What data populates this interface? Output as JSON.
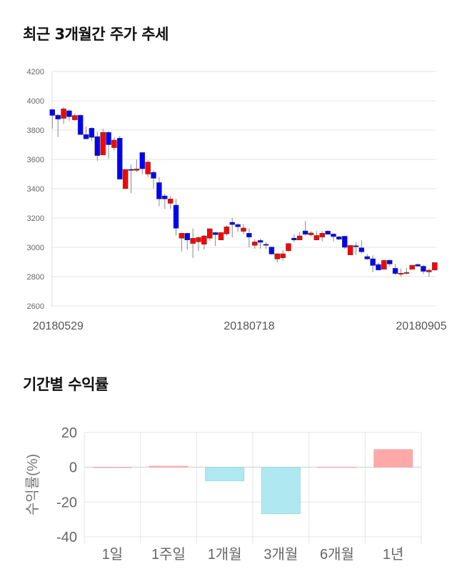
{
  "section1": {
    "title": "최근 3개월간 주가 추세"
  },
  "section2": {
    "title": "기간별 수익률"
  },
  "colors": {
    "up": "#ff0000",
    "down": "#0000ff",
    "pos_bar": "#ffa8a8",
    "neg_bar": "#b0e8f2"
  },
  "chart_data": [
    {
      "type": "candlestick",
      "title": "최근 3개월간 주가 추세",
      "ylim": [
        2600,
        4200
      ],
      "yticks": [
        2600,
        2800,
        3000,
        3200,
        3400,
        3600,
        3800,
        4000,
        4200
      ],
      "xtick_labels": [
        {
          "index": 0,
          "label": "20180529"
        },
        {
          "index": 34,
          "label": "20180718"
        },
        {
          "index": 66,
          "label": "20180905"
        }
      ],
      "grid": true,
      "ohlc": [
        [
          3940,
          3945,
          3810,
          3900
        ],
        [
          3902,
          3910,
          3753,
          3875
        ],
        [
          3880,
          3956,
          3842,
          3945
        ],
        [
          3932,
          3940,
          3862,
          3891
        ],
        [
          3870,
          3915,
          3862,
          3900
        ],
        [
          3902,
          3902,
          3769,
          3769
        ],
        [
          3770,
          3826,
          3740,
          3740
        ],
        [
          3813,
          3820,
          3725,
          3750
        ],
        [
          3756,
          3790,
          3590,
          3626
        ],
        [
          3630,
          3810,
          3630,
          3785
        ],
        [
          3785,
          3790,
          3606,
          3700
        ],
        [
          3680,
          3752,
          3660,
          3732
        ],
        [
          3745,
          3760,
          3465,
          3465
        ],
        [
          3400,
          3532,
          3400,
          3532
        ],
        [
          3532,
          3566,
          3370,
          3527
        ],
        [
          3525,
          3600,
          3512,
          3535
        ],
        [
          3647,
          3650,
          3500,
          3536
        ],
        [
          3500,
          3595,
          3480,
          3582
        ],
        [
          3512,
          3525,
          3400,
          3471
        ],
        [
          3442,
          3480,
          3281,
          3330
        ],
        [
          3351,
          3365,
          3262,
          3330
        ],
        [
          3300,
          3350,
          3262,
          3330
        ],
        [
          3288,
          3330,
          3081,
          3130
        ],
        [
          3062,
          3100,
          2972,
          3096
        ],
        [
          3096,
          3100,
          2985,
          3050
        ],
        [
          3026,
          3128,
          2927,
          3062
        ],
        [
          3037,
          3075,
          2975,
          3067
        ],
        [
          3021,
          3085,
          2985,
          3078
        ],
        [
          3062,
          3127,
          3045,
          3127
        ],
        [
          3101,
          3105,
          3010,
          3086
        ],
        [
          3050,
          3101,
          3050,
          3101
        ],
        [
          3091,
          3150,
          3080,
          3140
        ],
        [
          3171,
          3200,
          3067,
          3155
        ],
        [
          3156,
          3165,
          3105,
          3140
        ],
        [
          3109,
          3160,
          3090,
          3132
        ],
        [
          3096,
          3130,
          3000,
          3070
        ],
        [
          3013,
          3055,
          2990,
          3037
        ],
        [
          3047,
          3060,
          2990,
          3034
        ],
        [
          3021,
          3035,
          2990,
          3016
        ],
        [
          3002,
          3005,
          2950,
          2954
        ],
        [
          2920,
          2960,
          2895,
          2956
        ],
        [
          2928,
          2980,
          2910,
          2956
        ],
        [
          2976,
          3030,
          2970,
          3026
        ],
        [
          3063,
          3090,
          3035,
          3050
        ],
        [
          3050,
          3105,
          3050,
          3078
        ],
        [
          3112,
          3180,
          3080,
          3089
        ],
        [
          3085,
          3110,
          3075,
          3098
        ],
        [
          3050,
          3110,
          3050,
          3081
        ],
        [
          3070,
          3110,
          3040,
          3096
        ],
        [
          3111,
          3115,
          3085,
          3089
        ],
        [
          3091,
          3095,
          3040,
          3073
        ],
        [
          3072,
          3078,
          3050,
          3055
        ],
        [
          3076,
          3078,
          2990,
          3000
        ],
        [
          2948,
          3013,
          2948,
          3013
        ],
        [
          3011,
          3035,
          2950,
          3006
        ],
        [
          2997,
          3050,
          2960,
          2969
        ],
        [
          2937,
          2955,
          2915,
          2920
        ],
        [
          2922,
          2945,
          2830,
          2876
        ],
        [
          2883,
          2895,
          2855,
          2845
        ],
        [
          2850,
          2915,
          2850,
          2911
        ],
        [
          2912,
          2915,
          2870,
          2886
        ],
        [
          2857,
          2885,
          2810,
          2821
        ],
        [
          2816,
          2855,
          2800,
          2823
        ],
        [
          2823,
          2860,
          2815,
          2829
        ],
        [
          2850,
          2878,
          2850,
          2878
        ],
        [
          2883,
          2890,
          2870,
          2871
        ],
        [
          2871,
          2880,
          2818,
          2836
        ],
        [
          2832,
          2855,
          2800,
          2844
        ],
        [
          2845,
          2896,
          2840,
          2896
        ]
      ]
    },
    {
      "type": "bar",
      "title": "기간별 수익률",
      "ylabel": "수익률(%)",
      "categories": [
        "1일",
        "1주일",
        "1개월",
        "3개월",
        "6개월",
        "1년"
      ],
      "values": [
        0,
        0.6,
        -7.8,
        -26.7,
        0.1,
        10.2
      ],
      "ylim": [
        -40,
        20
      ],
      "yticks": [
        -40,
        -20,
        0,
        20
      ],
      "grid": true
    }
  ]
}
